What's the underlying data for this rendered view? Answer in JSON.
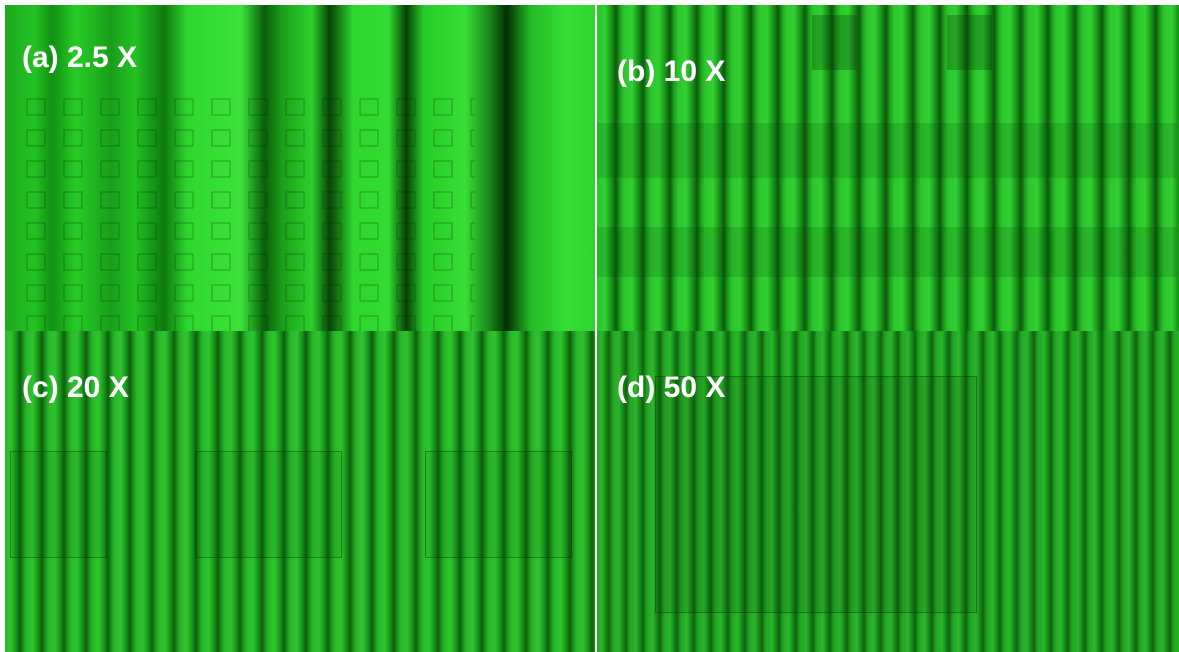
{
  "panels": [
    {
      "label": "(a) 2.5 X"
    },
    {
      "label": "(b) 10 X"
    },
    {
      "label": "(c) 20 X"
    },
    {
      "label": "(d) 50 X"
    }
  ]
}
